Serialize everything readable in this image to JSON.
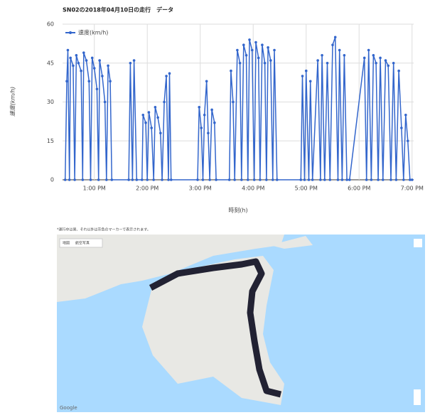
{
  "chart_data": {
    "type": "line",
    "title": "SN02の2018年04月10日の走行　データ",
    "y_label": "速度(km/h)",
    "x_label": "時刻(h)",
    "grid": true,
    "legend": "top-left",
    "x": [
      12.45,
      12.48,
      12.5,
      12.53,
      12.55,
      12.6,
      12.63,
      12.66,
      12.7,
      12.75,
      12.78,
      12.8,
      12.85,
      12.9,
      12.93,
      12.96,
      13.0,
      13.05,
      13.08,
      13.1,
      13.15,
      13.2,
      13.23,
      13.26,
      13.3,
      13.33,
      13.65,
      13.68,
      13.72,
      13.75,
      13.8,
      13.9,
      13.92,
      13.97,
      14.0,
      14.03,
      14.08,
      14.12,
      14.15,
      14.2,
      14.25,
      14.28,
      14.32,
      14.36,
      14.4,
      14.42,
      14.45,
      14.95,
      14.98,
      15.02,
      15.05,
      15.08,
      15.12,
      15.15,
      15.18,
      15.22,
      15.27,
      15.3,
      15.55,
      15.58,
      15.62,
      15.65,
      15.7,
      15.75,
      15.78,
      15.82,
      15.87,
      15.9,
      15.93,
      15.98,
      16.02,
      16.05,
      16.1,
      16.13,
      16.17,
      16.22,
      16.25,
      16.28,
      16.33,
      16.37,
      16.4,
      16.45,
      16.9,
      16.93,
      16.97,
      17.0,
      17.05,
      17.08,
      17.12,
      17.22,
      17.27,
      17.3,
      17.35,
      17.4,
      17.45,
      17.5,
      17.55,
      17.6,
      17.63,
      17.68,
      17.72,
      17.77,
      17.82,
      18.1,
      18.14,
      18.18,
      18.23,
      18.27,
      18.32,
      18.36,
      18.4,
      18.45,
      18.5,
      18.55,
      18.6,
      18.65,
      18.7,
      18.75,
      18.8,
      18.84,
      18.88,
      18.92,
      18.96,
      19.0
    ],
    "series": [
      {
        "name": "速度(km/h)",
        "color": "#3366cc",
        "values": [
          0,
          38,
          50,
          0,
          47,
          44,
          0,
          48,
          45,
          42,
          0,
          49,
          46,
          38,
          0,
          47,
          43,
          35,
          0,
          46,
          40,
          30,
          0,
          44,
          38,
          0,
          0,
          45,
          0,
          46,
          0,
          0,
          25,
          22,
          0,
          26,
          20,
          0,
          28,
          24,
          18,
          0,
          30,
          40,
          0,
          41,
          0,
          0,
          28,
          20,
          0,
          25,
          38,
          18,
          0,
          27,
          22,
          0,
          0,
          42,
          30,
          0,
          50,
          45,
          0,
          52,
          48,
          0,
          54,
          50,
          0,
          53,
          47,
          0,
          52,
          45,
          0,
          51,
          46,
          0,
          50,
          0,
          0,
          40,
          0,
          42,
          0,
          38,
          0,
          46,
          0,
          48,
          0,
          45,
          0,
          52,
          55,
          0,
          50,
          0,
          48,
          0,
          0,
          47,
          0,
          50,
          0,
          48,
          45,
          0,
          47,
          0,
          46,
          44,
          0,
          45,
          0,
          42,
          20,
          0,
          25,
          15,
          0,
          0
        ]
      }
    ],
    "xlim": [
      12.4,
      19.03
    ],
    "xticks": [
      {
        "value": 13,
        "label": "1:00 PM"
      },
      {
        "value": 14,
        "label": "2:00 PM"
      },
      {
        "value": 15,
        "label": "3:00 PM"
      },
      {
        "value": 16,
        "label": "4:00 PM"
      },
      {
        "value": 17,
        "label": "5:00 PM"
      },
      {
        "value": 18,
        "label": "6:00 PM"
      },
      {
        "value": 19,
        "label": "7:00 PM"
      }
    ],
    "ylim": [
      0,
      60
    ],
    "yticks": [
      0,
      15,
      30,
      45,
      60
    ]
  },
  "map": {
    "note": "*運行中は黒、それ以外は灰色のマーカーで表示されます。",
    "tabs": [
      "地図",
      "航空写真"
    ],
    "attribution": "Google"
  }
}
